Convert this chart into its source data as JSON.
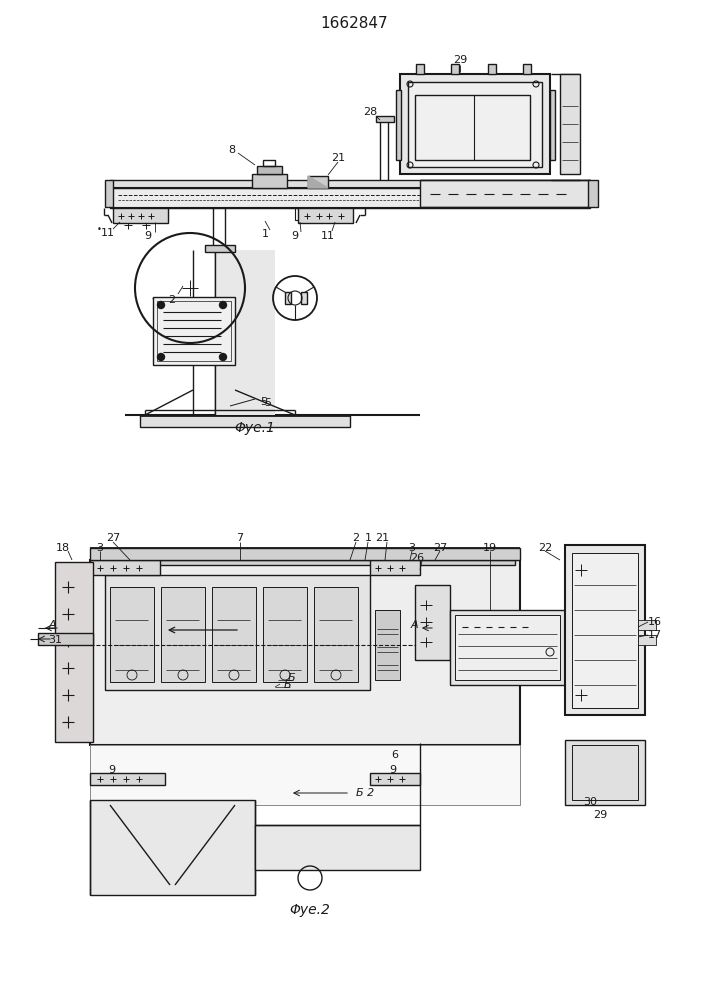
{
  "title": "1662847",
  "fig1_label": "Φуе.1",
  "fig2_label": "Φуе.2",
  "bg_color": "#ffffff",
  "line_color": "#1a1a1a",
  "lw": 1.0
}
